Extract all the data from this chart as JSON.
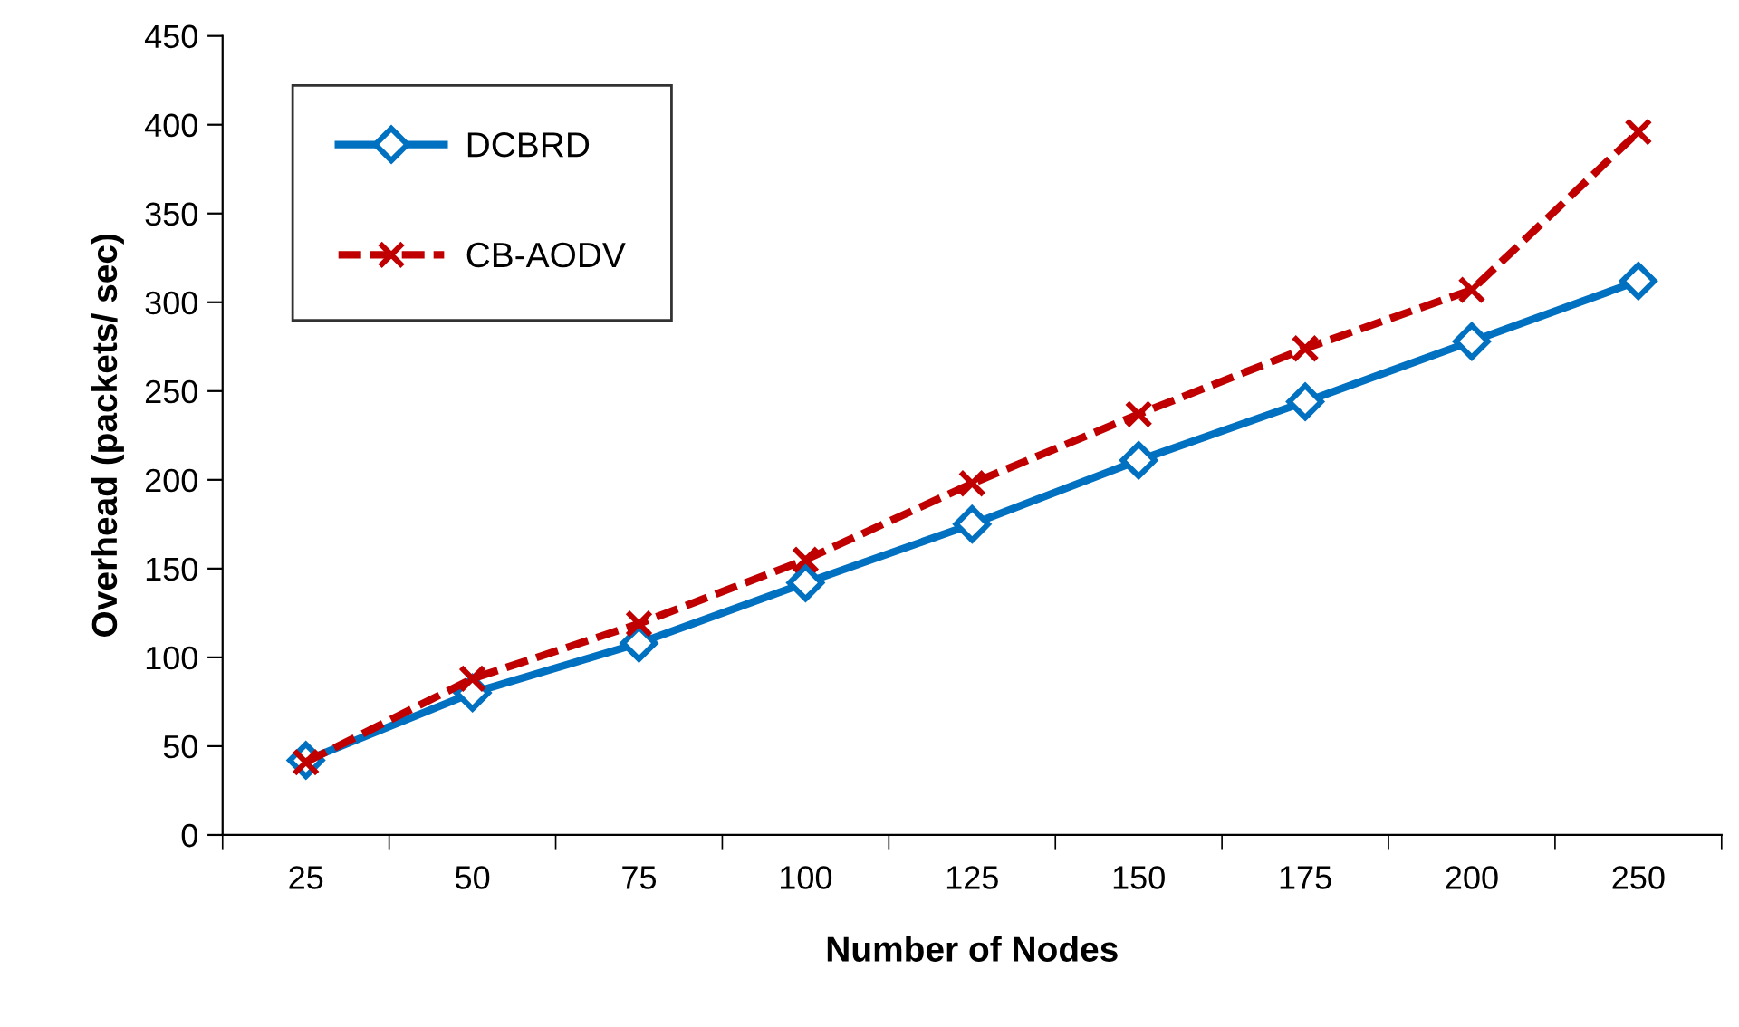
{
  "chart_data": {
    "type": "line",
    "xlabel": "Number of Nodes",
    "ylabel": "Overhead (packets/ sec)",
    "categories": [
      "25",
      "50",
      "75",
      "100",
      "125",
      "150",
      "175",
      "200",
      "250"
    ],
    "series": [
      {
        "name": "DCBRD",
        "color": "#0070c0",
        "marker": "diamond",
        "line_style": "solid",
        "values": [
          42,
          80,
          108,
          142,
          175,
          211,
          244,
          278,
          312
        ]
      },
      {
        "name": "CB-AODV",
        "color": "#c00000",
        "marker": "cross",
        "line_style": "dashed",
        "values": [
          41,
          88,
          119,
          155,
          198,
          237,
          274,
          307,
          396
        ]
      }
    ],
    "ylim": [
      0,
      450
    ],
    "yticks": [
      0,
      50,
      100,
      150,
      200,
      250,
      300,
      350,
      400,
      450
    ],
    "grid": false,
    "legend": "top left"
  }
}
